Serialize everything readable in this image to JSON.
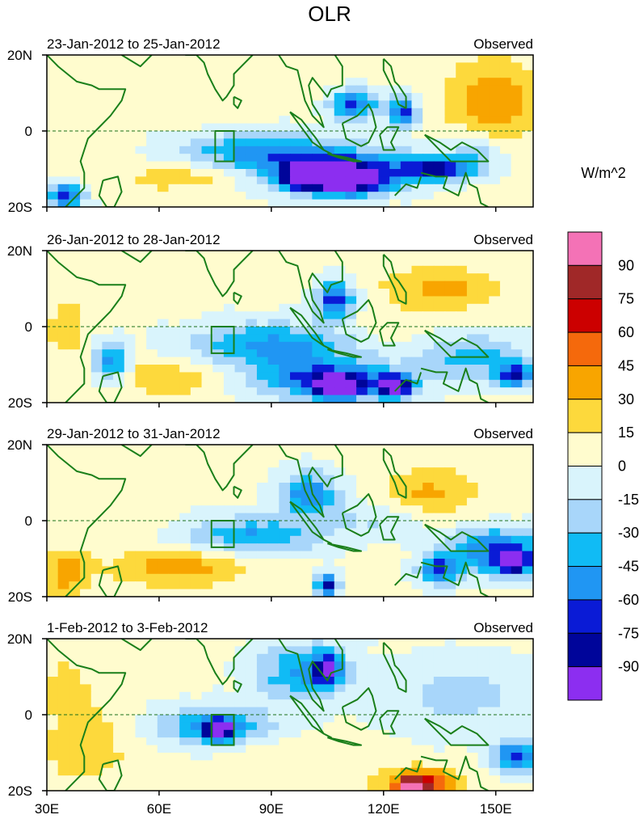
{
  "chart_data": {
    "type": "heatmap",
    "title": "OLR",
    "units": "W/m^2",
    "x_ticks": [
      "30E",
      "60E",
      "90E",
      "120E",
      "150E"
    ],
    "x_tick_values": [
      30,
      60,
      90,
      120,
      150
    ],
    "xlim": [
      30,
      160
    ],
    "y_ticks": [
      "20N",
      "0",
      "20S"
    ],
    "y_tick_values": [
      20,
      0,
      -20
    ],
    "ylim": [
      -20,
      20
    ],
    "equator_line": "dashed",
    "colorbar": {
      "labels": [
        "90",
        "75",
        "60",
        "45",
        "30",
        "15",
        "0",
        "-15",
        "-30",
        "-45",
        "-60",
        "-75",
        "-90"
      ],
      "levels": [
        90,
        75,
        60,
        45,
        30,
        15,
        0,
        -15,
        -30,
        -45,
        -60,
        -75,
        -90
      ],
      "colors": [
        "#f472b6",
        "#a02828",
        "#cc0000",
        "#f5690c",
        "#f8a500",
        "#fdd93c",
        "#fffcce",
        "#d9f4fc",
        "#a8d6fa",
        "#10bbf5",
        "#2096f3",
        "#0a1bd6",
        "#00059a",
        "#8c2ef0"
      ]
    },
    "panels": [
      {
        "left_title": "23-Jan-2012 to 25-Jan-2012",
        "right_title": "Observed",
        "box": {
          "lon": [
            75,
            80
          ],
          "lat": [
            -8,
            0
          ]
        },
        "features": [
          {
            "lon": 85,
            "lat": -5,
            "rx": 20,
            "ry": 5,
            "v": -40
          },
          {
            "lon": 105,
            "lat": -10,
            "rx": 25,
            "ry": 6,
            "v": -65
          },
          {
            "lon": 110,
            "lat": -13,
            "rx": 10,
            "ry": 4,
            "v": -95
          },
          {
            "lon": 98,
            "lat": -12,
            "rx": 5,
            "ry": 3,
            "v": -90
          },
          {
            "lon": 112,
            "lat": 7,
            "rx": 6,
            "ry": 4,
            "v": -70
          },
          {
            "lon": 125,
            "lat": 5,
            "rx": 4,
            "ry": 4,
            "v": -70
          },
          {
            "lon": 135,
            "lat": -10,
            "rx": 10,
            "ry": 3,
            "v": -75
          },
          {
            "lon": 145,
            "lat": -5,
            "rx": 7,
            "ry": 4,
            "v": -30
          },
          {
            "lon": 150,
            "lat": 8,
            "rx": 12,
            "ry": 10,
            "v": 40
          },
          {
            "lon": 70,
            "lat": -12,
            "rx": 20,
            "ry": 4,
            "v": 25
          },
          {
            "lon": 35,
            "lat": -17,
            "rx": 5,
            "ry": 3,
            "v": -80
          },
          {
            "lon": 40,
            "lat": 5,
            "rx": 10,
            "ry": 12,
            "v": 8
          },
          {
            "lon": 70,
            "lat": 10,
            "rx": 10,
            "ry": 6,
            "v": 10
          }
        ]
      },
      {
        "left_title": "26-Jan-2012 to 28-Jan-2012",
        "right_title": "Observed",
        "box": {
          "lon": [
            74,
            80
          ],
          "lat": [
            -7,
            0
          ]
        },
        "features": [
          {
            "lon": 90,
            "lat": -5,
            "rx": 22,
            "ry": 6,
            "v": -55
          },
          {
            "lon": 105,
            "lat": -14,
            "rx": 20,
            "ry": 5,
            "v": -70
          },
          {
            "lon": 108,
            "lat": -16,
            "rx": 6,
            "ry": 3,
            "v": -95
          },
          {
            "lon": 123,
            "lat": -16,
            "rx": 5,
            "ry": 3,
            "v": -90
          },
          {
            "lon": 107,
            "lat": 7,
            "rx": 5,
            "ry": 5,
            "v": -75
          },
          {
            "lon": 145,
            "lat": -8,
            "rx": 15,
            "ry": 6,
            "v": -40
          },
          {
            "lon": 155,
            "lat": -13,
            "rx": 5,
            "ry": 3,
            "v": -75
          },
          {
            "lon": 135,
            "lat": 10,
            "rx": 15,
            "ry": 6,
            "v": 30
          },
          {
            "lon": 60,
            "lat": -13,
            "rx": 20,
            "ry": 5,
            "v": 25
          },
          {
            "lon": 47,
            "lat": -10,
            "rx": 5,
            "ry": 5,
            "v": -65
          },
          {
            "lon": 35,
            "lat": 0,
            "rx": 6,
            "ry": 8,
            "v": 20
          },
          {
            "lon": 120,
            "lat": 0,
            "rx": 12,
            "ry": 4,
            "v": 10
          }
        ]
      },
      {
        "left_title": "29-Jan-2012 to 31-Jan-2012",
        "right_title": "Observed",
        "box": {
          "lon": [
            74,
            80
          ],
          "lat": [
            -7,
            0
          ]
        },
        "features": [
          {
            "lon": 85,
            "lat": -4,
            "rx": 18,
            "ry": 5,
            "v": -50
          },
          {
            "lon": 100,
            "lat": 7,
            "rx": 8,
            "ry": 6,
            "v": -60
          },
          {
            "lon": 105,
            "lat": -17,
            "rx": 3,
            "ry": 3,
            "v": -90
          },
          {
            "lon": 150,
            "lat": -8,
            "rx": 12,
            "ry": 6,
            "v": -70
          },
          {
            "lon": 155,
            "lat": -11,
            "rx": 4,
            "ry": 3,
            "v": -90
          },
          {
            "lon": 135,
            "lat": -13,
            "rx": 5,
            "ry": 4,
            "v": -70
          },
          {
            "lon": 132,
            "lat": 7,
            "rx": 12,
            "ry": 7,
            "v": 30
          },
          {
            "lon": 65,
            "lat": -12,
            "rx": 18,
            "ry": 5,
            "v": 35
          },
          {
            "lon": 35,
            "lat": -14,
            "rx": 6,
            "ry": 6,
            "v": 35
          },
          {
            "lon": 45,
            "lat": 8,
            "rx": 15,
            "ry": 10,
            "v": 10
          },
          {
            "lon": 120,
            "lat": 0,
            "rx": 15,
            "ry": 5,
            "v": -20
          }
        ]
      },
      {
        "left_title": "1-Feb-2012 to 3-Feb-2012",
        "right_title": "Observed",
        "box": {
          "lon": [
            74,
            80
          ],
          "lat": [
            -8,
            0
          ]
        },
        "features": [
          {
            "lon": 75,
            "lat": -3,
            "rx": 15,
            "ry": 5,
            "v": -55
          },
          {
            "lon": 76,
            "lat": -4,
            "rx": 4,
            "ry": 3,
            "v": -80
          },
          {
            "lon": 98,
            "lat": 11,
            "rx": 12,
            "ry": 8,
            "v": -50
          },
          {
            "lon": 105,
            "lat": 12,
            "rx": 4,
            "ry": 4,
            "v": -75
          },
          {
            "lon": 155,
            "lat": -11,
            "rx": 6,
            "ry": 4,
            "v": -70
          },
          {
            "lon": 130,
            "lat": -18,
            "rx": 10,
            "ry": 4,
            "v": 60
          },
          {
            "lon": 128,
            "lat": -19,
            "rx": 4,
            "ry": 2,
            "v": 80
          },
          {
            "lon": 40,
            "lat": -8,
            "rx": 10,
            "ry": 10,
            "v": 25
          },
          {
            "lon": 35,
            "lat": 8,
            "rx": 8,
            "ry": 8,
            "v": 15
          },
          {
            "lon": 140,
            "lat": 5,
            "rx": 20,
            "ry": 10,
            "v": -25
          },
          {
            "lon": 95,
            "lat": -12,
            "rx": 15,
            "ry": 5,
            "v": 10
          }
        ]
      }
    ]
  }
}
